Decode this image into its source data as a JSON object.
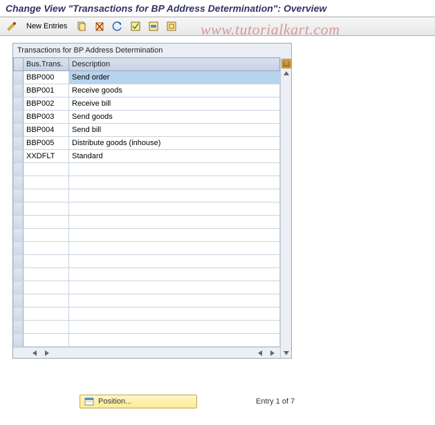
{
  "title": "Change View \"Transactions for BP Address Determination\": Overview",
  "watermark": "www.tutorialkart.com",
  "toolbar": {
    "new_entries_label": "New Entries"
  },
  "panel": {
    "header": "Transactions for BP Address Determination",
    "columns": {
      "bus_trans": "Bus.Trans.",
      "description": "Description"
    },
    "selected_row_index": 0,
    "rows": [
      {
        "code": "BBP000",
        "desc": "Send order"
      },
      {
        "code": "BBP001",
        "desc": "Receive goods"
      },
      {
        "code": "BBP002",
        "desc": "Receive bill"
      },
      {
        "code": "BBP003",
        "desc": "Send goods"
      },
      {
        "code": "BBP004",
        "desc": "Send bill"
      },
      {
        "code": "BBP005",
        "desc": "Distribute goods (inhouse)"
      },
      {
        "code": "XXDFLT",
        "desc": "Standard"
      }
    ],
    "total_visible_rows": 21
  },
  "footer": {
    "position_label": "Position...",
    "entry_text": "Entry 1 of 7"
  },
  "colors": {
    "title_color": "#333366",
    "header_grad_top": "#d9e1ee",
    "header_grad_bot": "#c6d1e4",
    "border": "#9aa8bb",
    "selection": "#b7d4ef",
    "position_bg_top": "#fff6c8",
    "position_bg_bot": "#fdec94",
    "watermark": "#d59a9a"
  }
}
